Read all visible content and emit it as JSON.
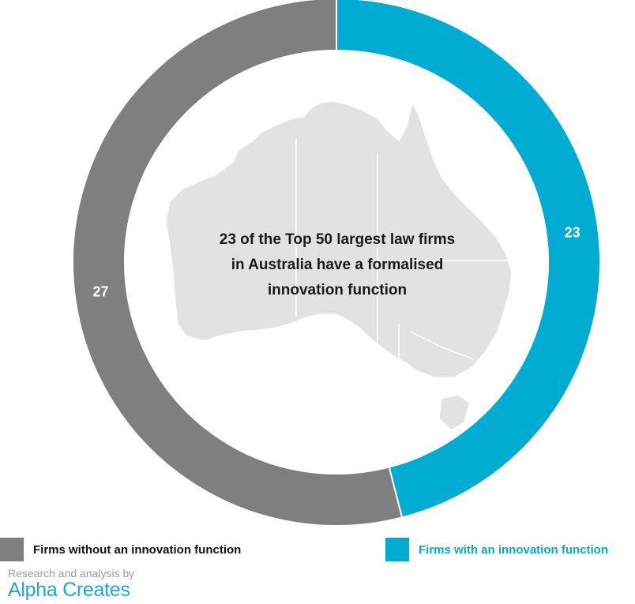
{
  "chart_data": {
    "type": "pie",
    "variant": "donut",
    "categories": [
      "Firms with an innovation function",
      "Firms without an innovation function"
    ],
    "values": [
      23,
      27
    ],
    "colors": [
      "#00acd2",
      "#7f7f7f"
    ],
    "legend": "bottom",
    "center_text": [
      "23 of the Top 50 largest law firms",
      "in Australia have a formalised",
      "innovation function"
    ]
  },
  "legend_items": [
    {
      "label": "Firms without an innovation function",
      "color": "#7f7f7f",
      "text_color": "#111111"
    },
    {
      "label": "Firms with an innovation function",
      "color": "#00acd2",
      "text_color": "#00acd2"
    }
  ],
  "credit": {
    "line1": "Research and analysis by",
    "brand": "Alpha Creates"
  },
  "background_map_icon": "australia-map-icon"
}
